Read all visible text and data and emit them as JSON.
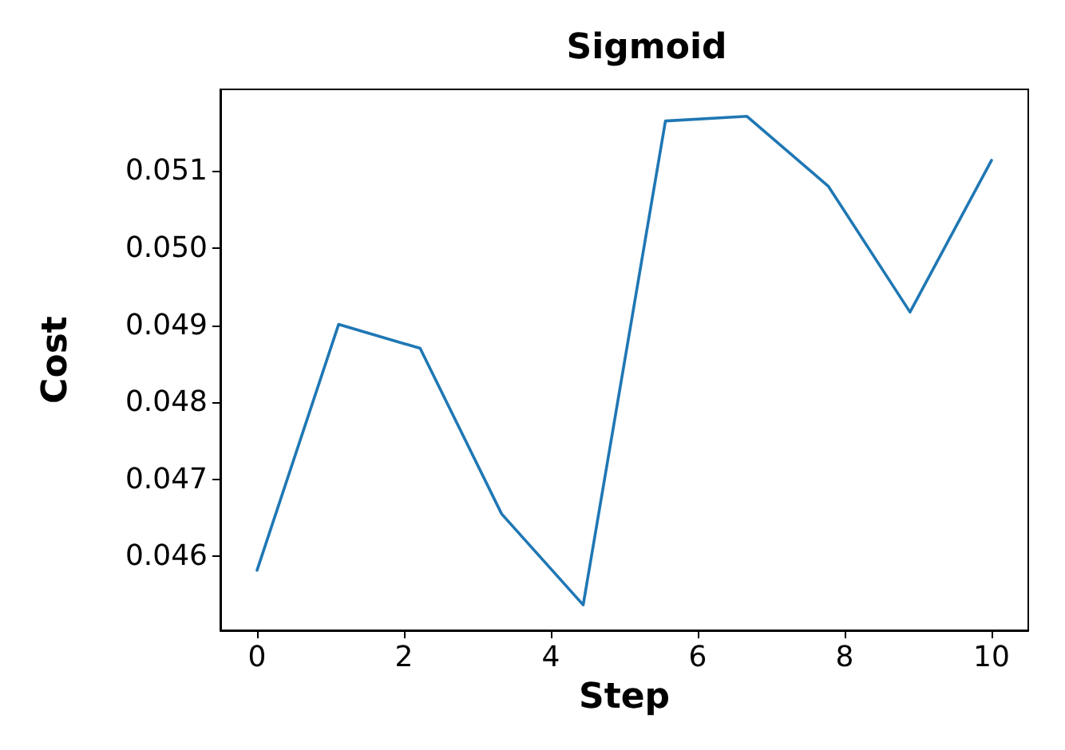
{
  "chart_data": {
    "type": "line",
    "title": "Sigmoid",
    "xlabel": "Step",
    "ylabel": "Cost",
    "x": [
      0,
      1.11,
      2.22,
      3.33,
      4.44,
      5.56,
      6.67,
      7.78,
      8.89,
      10
    ],
    "series": [
      {
        "color": "#1f77b4",
        "values": [
          0.04582,
          0.04901,
          0.0487,
          0.04655,
          0.04537,
          0.05165,
          0.05171,
          0.0508,
          0.04917,
          0.05114
        ]
      }
    ],
    "xlim": [
      -0.5,
      10.5
    ],
    "xticks": [
      0,
      2,
      4,
      6,
      8,
      10
    ],
    "ylim": [
      0.04504,
      0.05206
    ],
    "yticks": [
      {
        "value": 0.046,
        "label": "0.046"
      },
      {
        "value": 0.047,
        "label": "0.047"
      },
      {
        "value": 0.048,
        "label": "0.048"
      },
      {
        "value": 0.049,
        "label": "0.049"
      },
      {
        "value": 0.05,
        "label": "0.050"
      },
      {
        "value": 0.051,
        "label": "0.051"
      }
    ],
    "grid": false,
    "marker": "none",
    "line_style": "solid"
  }
}
